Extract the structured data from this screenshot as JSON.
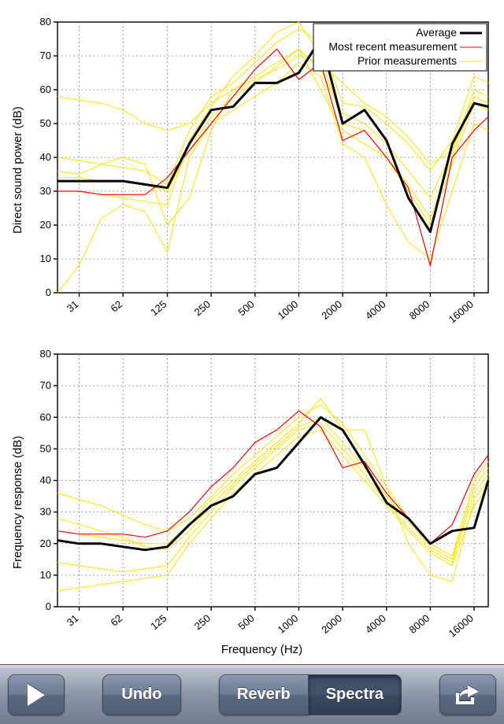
{
  "global_xlabel": "Frequency (Hz)",
  "axis_font_size": 15,
  "tick_font_size": 13,
  "legend_font_size": 14,
  "grid_color": "#888888",
  "grid_dash": "2 3",
  "axis_color": "#000000",
  "background_color": "#ffffff",
  "charts": [
    {
      "id": "top",
      "ylabel": "Direct sound power (dB)",
      "ylim": [
        0,
        80
      ],
      "ytick_step": 10,
      "x_scale": "log",
      "x_ticks": [
        31,
        62,
        125,
        250,
        500,
        1000,
        2000,
        4000,
        8000,
        16000
      ],
      "x_data": [
        22,
        31,
        44,
        62,
        88,
        125,
        177,
        250,
        354,
        500,
        707,
        1000,
        1414,
        2000,
        2828,
        4000,
        5657,
        8000,
        11314,
        16000,
        20000
      ],
      "legend": {
        "position": "top-right",
        "entries": [
          {
            "label": "Average",
            "color": "#000000",
            "width": 3
          },
          {
            "label": "Most recent measurement",
            "color": "#ff0000",
            "width": 1
          },
          {
            "label": "Prior measurements",
            "color": "#ffe400",
            "width": 1
          }
        ]
      },
      "series": [
        {
          "label": "prior1",
          "color": "#ffe400",
          "width": 1,
          "y": [
            58,
            57,
            56,
            54,
            50,
            48,
            50,
            56,
            60,
            63,
            66,
            70,
            68,
            62,
            56,
            52,
            46,
            38,
            42,
            60,
            58
          ]
        },
        {
          "label": "prior2",
          "color": "#ffe400",
          "width": 1,
          "y": [
            36,
            35,
            38,
            40,
            38,
            20,
            28,
            48,
            60,
            64,
            68,
            72,
            60,
            48,
            44,
            40,
            32,
            22,
            40,
            58,
            56
          ]
        },
        {
          "label": "prior3",
          "color": "#ffe400",
          "width": 1,
          "y": [
            40,
            39,
            38,
            37,
            36,
            32,
            48,
            58,
            62,
            68,
            74,
            78,
            74,
            56,
            55,
            50,
            44,
            36,
            45,
            64,
            62
          ]
        },
        {
          "label": "prior4",
          "color": "#ffe400",
          "width": 1,
          "y": [
            0,
            8,
            22,
            26,
            24,
            12,
            40,
            50,
            54,
            58,
            62,
            68,
            64,
            44,
            40,
            26,
            15,
            10,
            30,
            50,
            48
          ]
        },
        {
          "label": "prior5",
          "color": "#ffe400",
          "width": 1,
          "y": [
            30,
            30,
            29,
            28,
            27,
            26,
            45,
            55,
            64,
            70,
            77,
            80,
            70,
            50,
            48,
            40,
            30,
            20,
            38,
            56,
            54
          ]
        },
        {
          "label": "prior6",
          "color": "#ffe400",
          "width": 1,
          "y": [
            34,
            34,
            33,
            33,
            32,
            30,
            42,
            52,
            58,
            62,
            67,
            72,
            66,
            53,
            50,
            44,
            36,
            28,
            42,
            58,
            56
          ]
        },
        {
          "label": "recent",
          "color": "#ff0000",
          "width": 1.2,
          "y": [
            30,
            30,
            29,
            29,
            29,
            34,
            42,
            50,
            58,
            66,
            72,
            63,
            68,
            45,
            48,
            40,
            31,
            8,
            40,
            48,
            52
          ]
        },
        {
          "label": "average",
          "color": "#000000",
          "width": 3,
          "y": [
            33,
            33,
            33,
            33,
            32,
            31,
            44,
            54,
            55,
            62,
            62,
            65,
            75,
            50,
            54,
            45,
            28,
            18,
            44,
            56,
            55
          ]
        }
      ]
    },
    {
      "id": "bottom",
      "ylabel": "Frequency response (dB)",
      "ylim": [
        0,
        80
      ],
      "ytick_step": 10,
      "x_scale": "log",
      "x_ticks": [
        31,
        62,
        125,
        250,
        500,
        1000,
        2000,
        4000,
        8000,
        16000
      ],
      "x_data": [
        22,
        31,
        44,
        62,
        88,
        125,
        177,
        250,
        354,
        500,
        707,
        1000,
        1414,
        2000,
        2828,
        4000,
        5657,
        8000,
        11314,
        16000,
        20000
      ],
      "series": [
        {
          "label": "prior1",
          "color": "#ffe400",
          "width": 1,
          "y": [
            36,
            34,
            32,
            29,
            26,
            24,
            28,
            35,
            42,
            48,
            54,
            60,
            64,
            58,
            48,
            38,
            28,
            20,
            16,
            40,
            46
          ]
        },
        {
          "label": "prior2",
          "color": "#ffe400",
          "width": 1,
          "y": [
            14,
            13,
            12,
            11,
            12,
            13,
            22,
            30,
            38,
            44,
            50,
            56,
            58,
            50,
            42,
            33,
            25,
            18,
            14,
            36,
            42
          ]
        },
        {
          "label": "prior3",
          "color": "#ffe400",
          "width": 1,
          "y": [
            24,
            23,
            22,
            21,
            20,
            20,
            26,
            34,
            40,
            46,
            52,
            58,
            66,
            56,
            56,
            38,
            20,
            10,
            8,
            34,
            40
          ]
        },
        {
          "label": "prior4",
          "color": "#ffe400",
          "width": 1,
          "y": [
            5,
            6,
            7,
            8,
            9,
            10,
            20,
            28,
            36,
            42,
            48,
            54,
            56,
            48,
            40,
            32,
            24,
            17,
            13,
            32,
            38
          ]
        },
        {
          "label": "prior5",
          "color": "#ffe400",
          "width": 1,
          "y": [
            28,
            26,
            24,
            22,
            19,
            18,
            24,
            32,
            39,
            45,
            51,
            57,
            60,
            52,
            44,
            35,
            27,
            19,
            15,
            38,
            44
          ]
        },
        {
          "label": "recent",
          "color": "#ff0000",
          "width": 1.2,
          "y": [
            24,
            23,
            23,
            23,
            22,
            24,
            30,
            38,
            44,
            52,
            56,
            62,
            57,
            44,
            46,
            36,
            28,
            20,
            26,
            42,
            48
          ]
        },
        {
          "label": "average",
          "color": "#000000",
          "width": 3,
          "y": [
            21,
            20,
            20,
            19,
            18,
            19,
            26,
            32,
            35,
            42,
            44,
            52,
            60,
            56,
            45,
            33,
            28,
            20,
            24,
            25,
            40
          ]
        }
      ]
    }
  ],
  "toolbar": {
    "play_label": "Play",
    "undo_label": "Undo",
    "reverb_label": "Reverb",
    "spectra_label": "Spectra",
    "share_label": "Share",
    "active_segment": "Spectra",
    "bar_gradient_top": "#d8dde3",
    "bar_gradient_bottom": "#6f7c91",
    "btn_gradient_top": "#8a97ad",
    "btn_gradient_bottom": "#4f5d76",
    "btn_active_top": "#3b4a62",
    "btn_active_bottom": "#2f3d54",
    "btn_text_color": "#ffffff"
  }
}
